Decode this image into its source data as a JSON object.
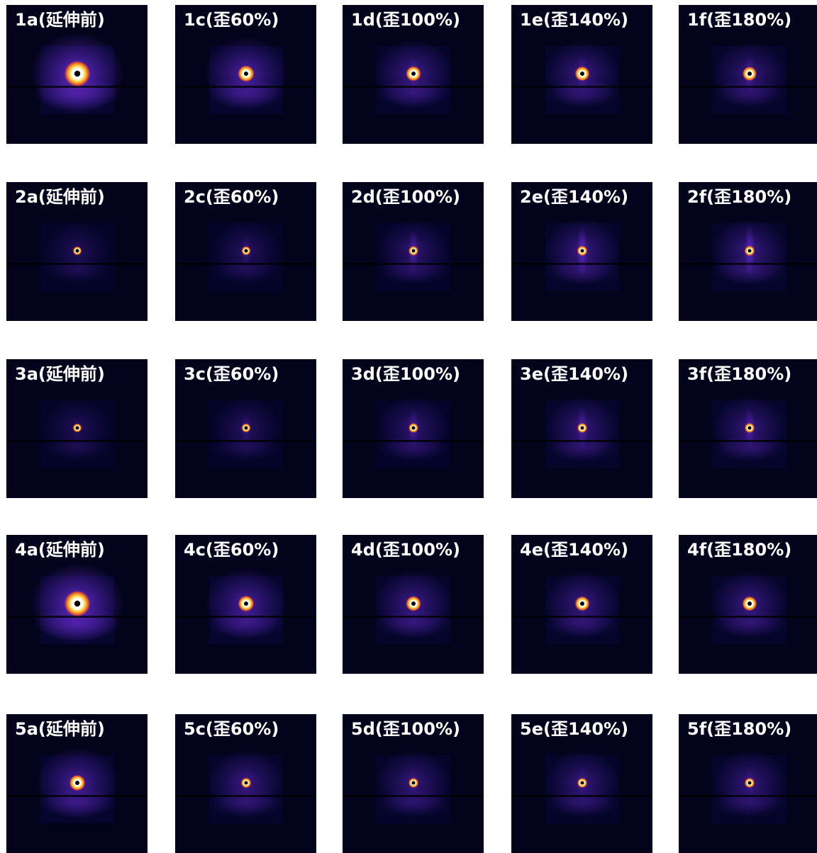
{
  "colors": {
    "background": "#03031c",
    "halo_glow": "#6a2bd6",
    "ring_core": "#ffffff",
    "ring_mid": "#ffd23a",
    "ring_outer": "#e8572b",
    "beamstop": "#000000"
  },
  "grid": {
    "rows": [
      {
        "sample": "1",
        "panels": [
          {
            "label": "1a(延伸前)",
            "glow_intensity": 1.0,
            "spot_size": "large",
            "vertical_streak": 0.2
          },
          {
            "label": "1c(歪60%)",
            "glow_intensity": 0.75,
            "spot_size": "medium",
            "vertical_streak": 0.3
          },
          {
            "label": "1d(歪100%)",
            "glow_intensity": 0.6,
            "spot_size": "medium",
            "vertical_streak": 0.4
          },
          {
            "label": "1e(歪140%)",
            "glow_intensity": 0.55,
            "spot_size": "medium",
            "vertical_streak": 0.45
          },
          {
            "label": "1f(歪180%)",
            "glow_intensity": 0.5,
            "spot_size": "medium",
            "vertical_streak": 0.5
          }
        ]
      },
      {
        "sample": "2",
        "panels": [
          {
            "label": "2a(延伸前)",
            "glow_intensity": 0.3,
            "spot_size": "small",
            "vertical_streak": 0.1
          },
          {
            "label": "2c(歪60%)",
            "glow_intensity": 0.35,
            "spot_size": "small",
            "vertical_streak": 0.3
          },
          {
            "label": "2d(歪100%)",
            "glow_intensity": 0.45,
            "spot_size": "small",
            "vertical_streak": 0.6
          },
          {
            "label": "2e(歪140%)",
            "glow_intensity": 0.55,
            "spot_size": "small",
            "vertical_streak": 0.8
          },
          {
            "label": "2f(歪180%)",
            "glow_intensity": 0.55,
            "spot_size": "small",
            "vertical_streak": 0.8
          }
        ]
      },
      {
        "sample": "3",
        "panels": [
          {
            "label": "3a(延伸前)",
            "glow_intensity": 0.3,
            "spot_size": "small",
            "vertical_streak": 0.1
          },
          {
            "label": "3c(歪60%)",
            "glow_intensity": 0.35,
            "spot_size": "small",
            "vertical_streak": 0.3
          },
          {
            "label": "3d(歪100%)",
            "glow_intensity": 0.45,
            "spot_size": "small",
            "vertical_streak": 0.5
          },
          {
            "label": "3e(歪140%)",
            "glow_intensity": 0.5,
            "spot_size": "small",
            "vertical_streak": 0.6
          },
          {
            "label": "3f(歪180%)",
            "glow_intensity": 0.5,
            "spot_size": "small",
            "vertical_streak": 0.6
          }
        ]
      },
      {
        "sample": "4",
        "panels": [
          {
            "label": "4a(延伸前)",
            "glow_intensity": 1.0,
            "spot_size": "large",
            "vertical_streak": 0.2
          },
          {
            "label": "4c(歪60%)",
            "glow_intensity": 0.7,
            "spot_size": "medium",
            "vertical_streak": 0.2
          },
          {
            "label": "4d(歪100%)",
            "glow_intensity": 0.6,
            "spot_size": "medium",
            "vertical_streak": 0.2
          },
          {
            "label": "4e(歪140%)",
            "glow_intensity": 0.55,
            "spot_size": "medium",
            "vertical_streak": 0.2
          },
          {
            "label": "4f(歪180%)",
            "glow_intensity": 0.55,
            "spot_size": "medium",
            "vertical_streak": 0.2
          }
        ]
      },
      {
        "sample": "5",
        "panels": [
          {
            "label": "5a(延伸前)",
            "glow_intensity": 0.7,
            "spot_size": "medium",
            "vertical_streak": 0.15
          },
          {
            "label": "5c(歪60%)",
            "glow_intensity": 0.55,
            "spot_size": "small",
            "vertical_streak": 0.2
          },
          {
            "label": "5d(歪100%)",
            "glow_intensity": 0.5,
            "spot_size": "small",
            "vertical_streak": 0.25
          },
          {
            "label": "5e(歪140%)",
            "glow_intensity": 0.5,
            "spot_size": "small",
            "vertical_streak": 0.3
          },
          {
            "label": "5f(歪180%)",
            "glow_intensity": 0.5,
            "spot_size": "small",
            "vertical_streak": 0.3
          }
        ]
      }
    ]
  }
}
